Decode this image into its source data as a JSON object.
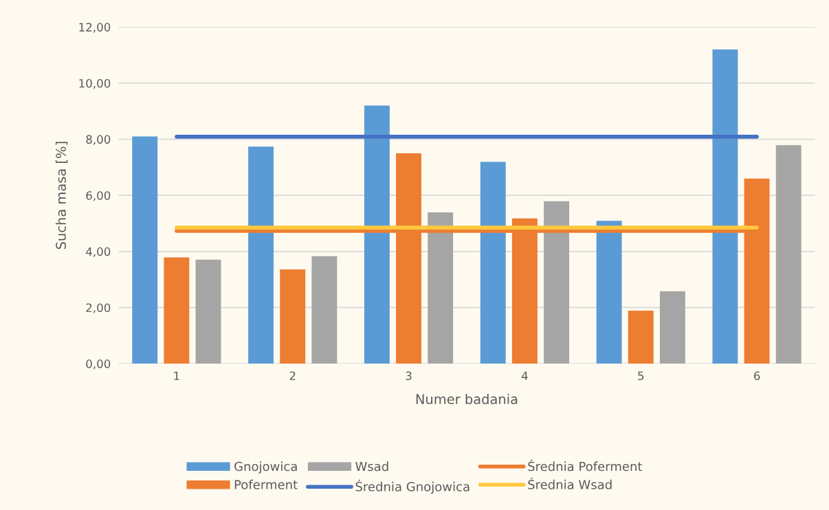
{
  "chart_data": {
    "type": "bar",
    "xlabel": "Numer badania",
    "ylabel": "Sucha masa [%]",
    "categories": [
      "1",
      "2",
      "3",
      "4",
      "5",
      "6"
    ],
    "series": [
      {
        "name": "Gnojowica",
        "color": "#5b9bd5",
        "values": [
          8.1,
          7.74,
          9.2,
          7.19,
          5.09,
          11.2
        ]
      },
      {
        "name": "Poferment",
        "color": "#ed7d31",
        "values": [
          3.79,
          3.36,
          7.5,
          5.18,
          1.89,
          6.6
        ]
      },
      {
        "name": "Wsad",
        "color": "#a5a5a5",
        "values": [
          3.71,
          3.83,
          5.39,
          5.79,
          2.58,
          7.79
        ]
      },
      {
        "name": "Średnia Gnojowica",
        "type": "line",
        "color": "#4472c4",
        "values": [
          8.09,
          8.09,
          8.09,
          8.09,
          8.09,
          8.09
        ]
      },
      {
        "name": "Średnia Poferment",
        "type": "line",
        "color": "#ed7d31",
        "values": [
          4.73,
          4.73,
          4.73,
          4.73,
          4.73,
          4.73
        ]
      },
      {
        "name": "Średnia Wsad",
        "type": "line",
        "color": "#ffc83d",
        "values": [
          4.85,
          4.85,
          4.85,
          4.85,
          4.85,
          4.85
        ]
      }
    ],
    "ylim": [
      0,
      12
    ],
    "yticks": [
      {
        "value": 0,
        "label": "0,00"
      },
      {
        "value": 2,
        "label": "2,00"
      },
      {
        "value": 4,
        "label": "4,00"
      },
      {
        "value": 6,
        "label": "6,00"
      },
      {
        "value": 8,
        "label": "8,00"
      },
      {
        "value": 10,
        "label": "10,00"
      },
      {
        "value": 12,
        "label": "12,00"
      }
    ],
    "grid": "y",
    "legend": "bottom",
    "marker": "none",
    "line_style": "solid"
  }
}
